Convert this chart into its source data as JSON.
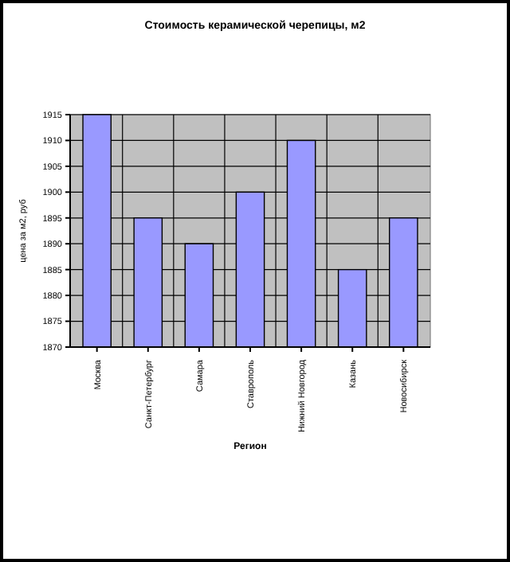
{
  "chart_data": {
    "type": "bar",
    "title": "Стоимость керамической черепицы, м2",
    "xlabel": "Регион",
    "ylabel": "цена за м2, руб",
    "categories": [
      "Москва",
      "Санкт-Петербург",
      "Самара",
      "Ставрополь",
      "Нижний Новгород",
      "Казань",
      "Новосибирск"
    ],
    "values": [
      1915,
      1895,
      1890,
      1900,
      1910,
      1885,
      1895
    ],
    "color": "#9999ff",
    "ylim": [
      1870,
      1915
    ],
    "yticks": [
      1870,
      1875,
      1880,
      1885,
      1890,
      1895,
      1900,
      1905,
      1910,
      1915
    ],
    "grid": true
  }
}
